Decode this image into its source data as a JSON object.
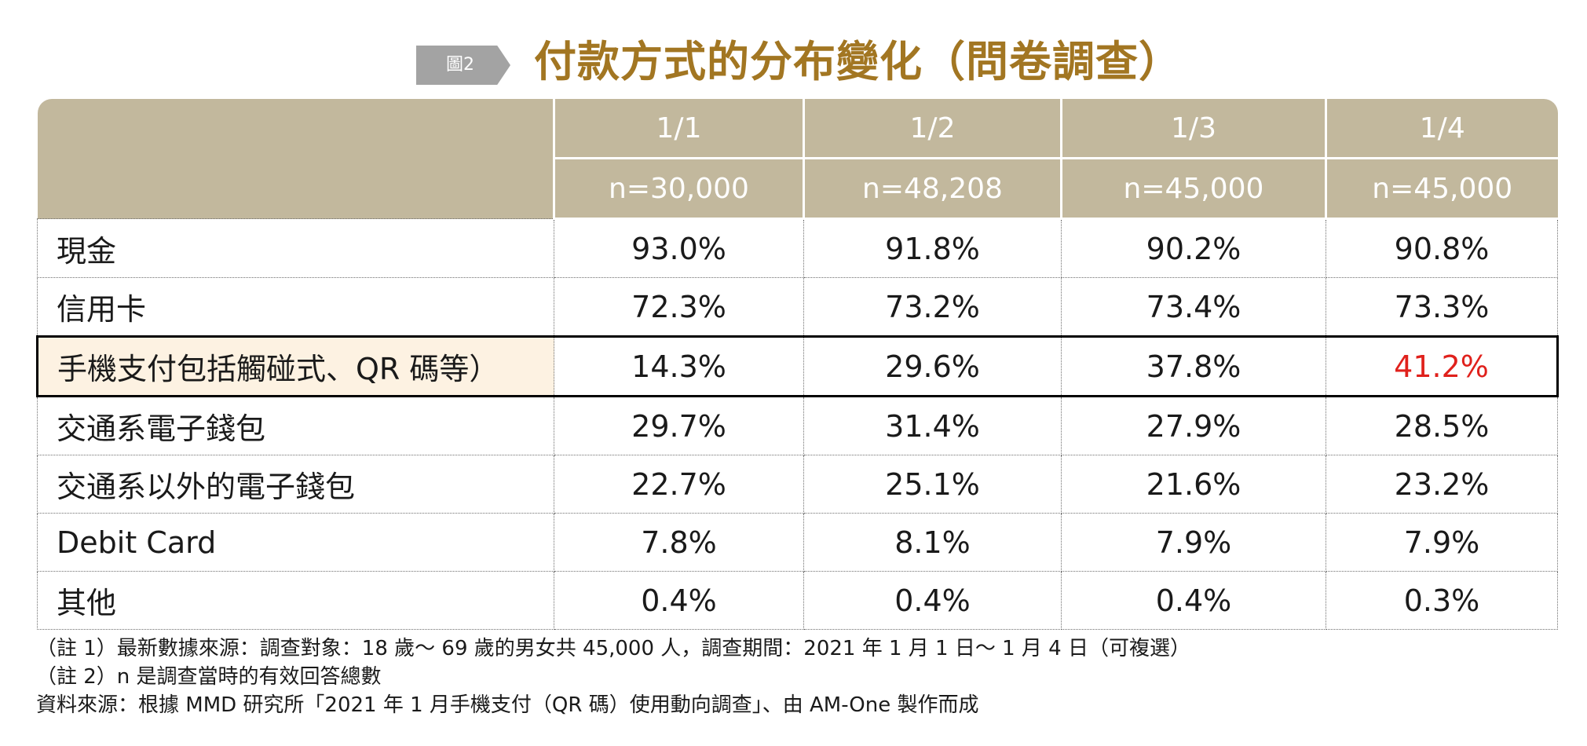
{
  "figure": {
    "tag": "圖2",
    "title": "付款方式的分布變化（問卷調查）"
  },
  "chart_data": {
    "type": "table",
    "title": "付款方式的分布變化（問卷調查）",
    "columns": [
      {
        "date": "1/1",
        "n": "n=30,000"
      },
      {
        "date": "1/2",
        "n": "n=48,208"
      },
      {
        "date": "1/3",
        "n": "n=45,000"
      },
      {
        "date": "1/4",
        "n": "n=45,000"
      }
    ],
    "rows": [
      {
        "label": "現金",
        "values": [
          "93.0%",
          "91.8%",
          "90.2%",
          "90.8%"
        ]
      },
      {
        "label": "信用卡",
        "values": [
          "72.3%",
          "73.2%",
          "73.4%",
          "73.3%"
        ]
      },
      {
        "label": "手機支付包括觸碰式、QR 碼等）",
        "values": [
          "14.3%",
          "29.6%",
          "37.8%",
          "41.2%"
        ],
        "highlighted": true,
        "highlight_color": "#e0211c"
      },
      {
        "label": "交通系電子錢包",
        "values": [
          "29.7%",
          "31.4%",
          "27.9%",
          "28.5%"
        ]
      },
      {
        "label": "交通系以外的電子錢包",
        "values": [
          "22.7%",
          "25.1%",
          "21.6%",
          "23.2%"
        ]
      },
      {
        "label": "Debit Card",
        "values": [
          "7.8%",
          "8.1%",
          "7.9%",
          "7.9%"
        ]
      },
      {
        "label": "其他",
        "values": [
          "0.4%",
          "0.4%",
          "0.4%",
          "0.3%"
        ]
      }
    ]
  },
  "notes": [
    "（註 1）最新數據來源：調查對象：18 歲～ 69 歲的男女共 45,000 人，調查期間：2021 年 1 月 1 日～ 1 月 4 日（可複選）",
    "（註 2）n 是調查當時的有效回答總數",
    "資料來源：根據 MMD 研究所「2021 年 1 月手機支付（QR 碼）使用動向調查」、由 AM-One 製作而成"
  ],
  "colors": {
    "header_bg": "#c2b89d",
    "title": "#a27622",
    "tag_bg": "#a3a3a3",
    "highlight_row_bg": "#fdf2e2",
    "highlight_value": "#e0211c"
  }
}
